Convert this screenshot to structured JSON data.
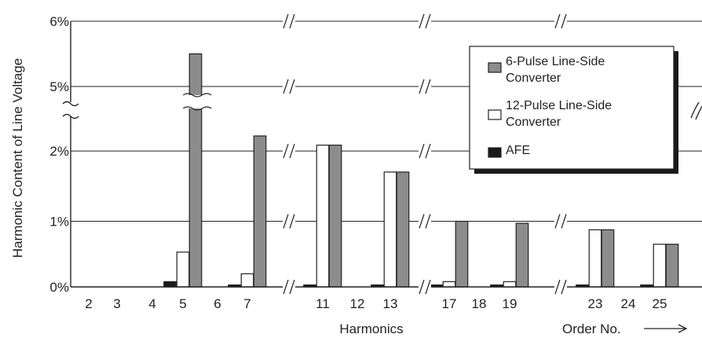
{
  "chart_data": {
    "type": "bar",
    "ylabel": "Harmonic Content of Line Voltage",
    "xlabel": "Harmonics",
    "x_axis_note": "Order No.",
    "y_ticks": [
      "0%",
      "1%",
      "2%",
      "5%",
      "6%"
    ],
    "y_axis_broken_between": [
      "2%",
      "5%"
    ],
    "x_tick_labels": [
      "2",
      "3",
      "4",
      "5",
      "6",
      "7",
      "11",
      "12",
      "13",
      "17",
      "18",
      "19",
      "23",
      "24",
      "25"
    ],
    "categories": [
      "5",
      "7",
      "11",
      "13",
      "17",
      "19",
      "23",
      "25"
    ],
    "series": [
      {
        "name": "AFE",
        "color": "#1a1a1a",
        "values": [
          0.08,
          0.03,
          0.03,
          0.03,
          0.03,
          0.03,
          0.03,
          0.03
        ]
      },
      {
        "name": "12-Pulse Line-Side Converter",
        "color": "#ffffff",
        "values": [
          0.53,
          0.2,
          2.16,
          1.75,
          0.08,
          0.08,
          0.87,
          0.65
        ]
      },
      {
        "name": "6-Pulse Line-Side Converter",
        "color": "#8c8c8c",
        "values": [
          5.5,
          2.3,
          2.16,
          1.75,
          1.0,
          0.97,
          0.87,
          0.65
        ]
      }
    ],
    "legend": {
      "position": "top-right",
      "entries": [
        {
          "label": "6-Pulse Line-Side Converter",
          "lines": [
            "6-Pulse Line-Side",
            "Converter"
          ],
          "color": "#8c8c8c"
        },
        {
          "label": "12-Pulse Line-Side Converter",
          "lines": [
            "12-Pulse Line-Side",
            "Converter"
          ],
          "color": "#ffffff"
        },
        {
          "label": "AFE",
          "lines": [
            "AFE"
          ],
          "color": "#1a1a1a"
        }
      ]
    },
    "grid": "horizontal"
  }
}
